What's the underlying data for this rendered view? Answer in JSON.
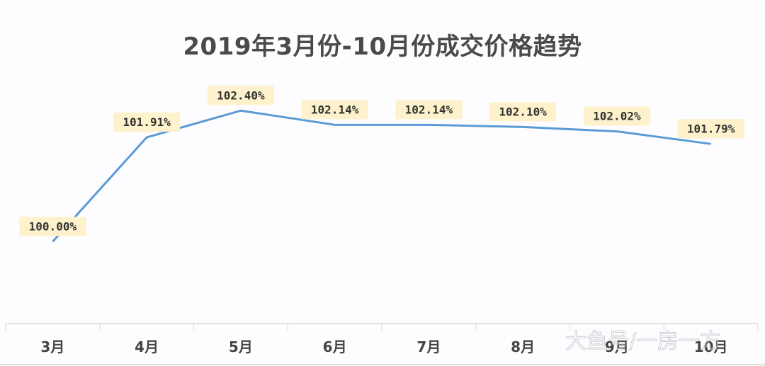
{
  "chart_data": {
    "type": "line",
    "title": "2019年3月份-10月份成交价格趋势",
    "categories": [
      "3月",
      "4月",
      "5月",
      "6月",
      "7月",
      "8月",
      "9月",
      "10月"
    ],
    "values": [
      100.0,
      101.91,
      102.4,
      102.14,
      102.14,
      102.1,
      102.02,
      101.79
    ],
    "data_labels": [
      "100.00%",
      "101.91%",
      "102.40%",
      "102.14%",
      "102.14%",
      "102.10%",
      "102.02%",
      "101.79%"
    ],
    "xlabel": "",
    "ylabel": "",
    "ylim": [
      98.5,
      103
    ],
    "grid": false,
    "legend": "none",
    "colors": {
      "line": "#5b9bd5",
      "label_bg": "#fdf2cc",
      "label_text": "#333333",
      "axis": "#d9d9d9"
    }
  },
  "watermark": "大鱼号/一房一方"
}
